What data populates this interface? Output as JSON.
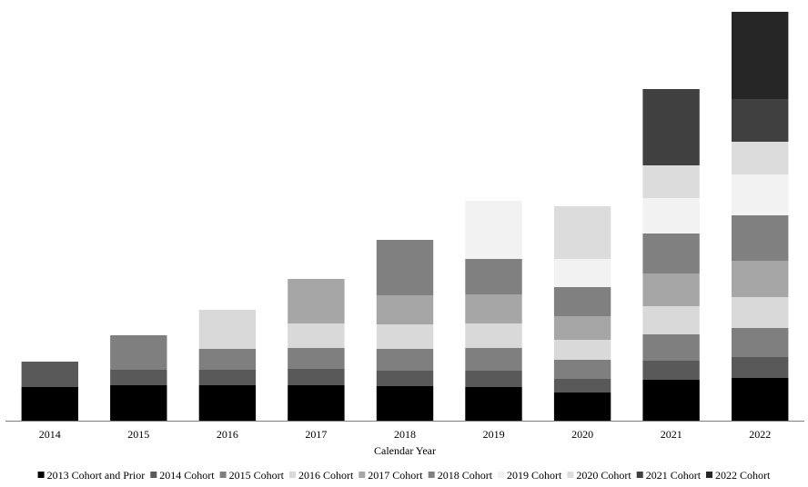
{
  "chart_data": {
    "type": "bar",
    "stacked": true,
    "title": "",
    "xlabel": "Calendar Year",
    "ylabel": "",
    "y_axis_visible": false,
    "grid": false,
    "legend_position": "bottom",
    "categories": [
      "2014",
      "2015",
      "2016",
      "2017",
      "2018",
      "2019",
      "2020",
      "2021",
      "2022"
    ],
    "ylim": [
      0,
      450
    ],
    "series": [
      {
        "name": "2013 Cohort and Prior",
        "color": "#000000",
        "values": [
          37,
          39,
          39,
          39,
          38,
          37,
          31,
          45,
          47
        ]
      },
      {
        "name": "2014 Cohort",
        "color": "#595959",
        "values": [
          28,
          17,
          17,
          18,
          17,
          18,
          15,
          21,
          23
        ]
      },
      {
        "name": "2015 Cohort",
        "color": "#7f7f7f",
        "values": [
          0,
          38,
          23,
          23,
          24,
          25,
          21,
          29,
          32
        ]
      },
      {
        "name": "2016 Cohort",
        "color": "#d9d9d9",
        "values": [
          0,
          0,
          43,
          27,
          27,
          27,
          22,
          31,
          34
        ]
      },
      {
        "name": "2017 Cohort",
        "color": "#a6a6a6",
        "values": [
          0,
          0,
          0,
          49,
          32,
          32,
          26,
          36,
          40
        ]
      },
      {
        "name": "2018 Cohort",
        "color": "#808080",
        "values": [
          0,
          0,
          0,
          0,
          61,
          39,
          32,
          44,
          50
        ]
      },
      {
        "name": "2019 Cohort",
        "color": "#f2f2f2",
        "values": [
          0,
          0,
          0,
          0,
          0,
          64,
          31,
          39,
          45
        ]
      },
      {
        "name": "2020 Cohort",
        "color": "#dcdcdc",
        "values": [
          0,
          0,
          0,
          0,
          0,
          0,
          58,
          36,
          36
        ]
      },
      {
        "name": "2021 Cohort",
        "color": "#404040",
        "values": [
          0,
          0,
          0,
          0,
          0,
          0,
          0,
          84,
          47
        ]
      },
      {
        "name": "2022 Cohort",
        "color": "#262626",
        "values": [
          0,
          0,
          0,
          0,
          0,
          0,
          0,
          0,
          96
        ]
      }
    ]
  }
}
